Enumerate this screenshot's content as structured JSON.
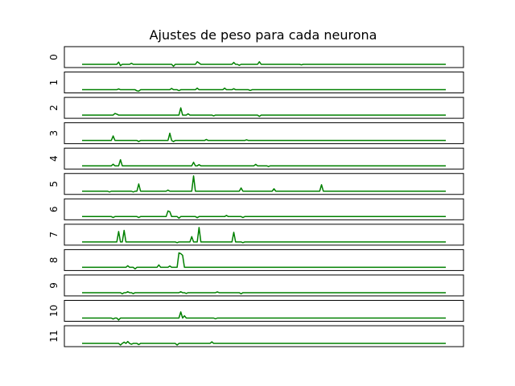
{
  "chart_data": {
    "type": "line",
    "title": "Ajustes de peso para cada neurona",
    "xlabel": "",
    "ylabel": "",
    "x_ticks_visible": false,
    "y_ticks_visible": false,
    "grid": false,
    "line_color": "#008000",
    "n_samples": 200,
    "x_range": [
      0,
      199
    ],
    "y_range": [
      -0.1,
      1.0
    ],
    "panels": [
      {
        "label": "0",
        "spikes": [
          [
            20,
            0.14
          ],
          [
            21,
            -0.08
          ],
          [
            27,
            0.07
          ],
          [
            50,
            -0.12
          ],
          [
            63,
            0.16
          ],
          [
            64,
            0.08
          ],
          [
            83,
            0.12
          ],
          [
            86,
            -0.06
          ],
          [
            97,
            0.16
          ],
          [
            120,
            -0.03
          ]
        ]
      },
      {
        "label": "1",
        "spikes": [
          [
            20,
            0.05
          ],
          [
            30,
            -0.07
          ],
          [
            31,
            -0.09
          ],
          [
            49,
            0.08
          ],
          [
            53,
            -0.06
          ],
          [
            63,
            0.1
          ],
          [
            78,
            0.1
          ],
          [
            83,
            0.06
          ],
          [
            92,
            -0.05
          ]
        ]
      },
      {
        "label": "2",
        "spikes": [
          [
            18,
            0.1
          ],
          [
            19,
            0.06
          ],
          [
            54,
            0.45
          ],
          [
            58,
            0.08
          ],
          [
            72,
            -0.05
          ],
          [
            97,
            -0.08
          ]
        ]
      },
      {
        "label": "3",
        "spikes": [
          [
            17,
            0.28
          ],
          [
            31,
            -0.07
          ],
          [
            48,
            0.45
          ],
          [
            50,
            -0.07
          ],
          [
            68,
            0.06
          ],
          [
            90,
            0.04
          ]
        ]
      },
      {
        "label": "4",
        "spikes": [
          [
            17,
            0.1
          ],
          [
            21,
            0.38
          ],
          [
            61,
            0.22
          ],
          [
            64,
            0.07
          ],
          [
            95,
            0.09
          ],
          [
            102,
            -0.04
          ]
        ]
      },
      {
        "label": "5",
        "spikes": [
          [
            15,
            -0.05
          ],
          [
            28,
            -0.05
          ],
          [
            31,
            0.45
          ],
          [
            47,
            0.07
          ],
          [
            61,
            0.95
          ],
          [
            87,
            0.2
          ],
          [
            105,
            0.15
          ],
          [
            131,
            0.4
          ]
        ]
      },
      {
        "label": "6",
        "spikes": [
          [
            17,
            -0.06
          ],
          [
            31,
            -0.06
          ],
          [
            47,
            0.35
          ],
          [
            48,
            0.3
          ],
          [
            53,
            -0.1
          ],
          [
            63,
            -0.07
          ],
          [
            79,
            0.07
          ],
          [
            88,
            -0.06
          ]
        ]
      },
      {
        "label": "7",
        "spikes": [
          [
            20,
            0.65
          ],
          [
            23,
            0.72
          ],
          [
            52,
            -0.05
          ],
          [
            60,
            0.33
          ],
          [
            64,
            0.9
          ],
          [
            83,
            0.6
          ],
          [
            88,
            -0.05
          ]
        ]
      },
      {
        "label": "8",
        "spikes": [
          [
            25,
            0.1
          ],
          [
            29,
            -0.1
          ],
          [
            42,
            0.15
          ],
          [
            48,
            0.08
          ],
          [
            53,
            0.9
          ],
          [
            54,
            0.85
          ],
          [
            55,
            0.75
          ]
        ]
      },
      {
        "label": "9",
        "spikes": [
          [
            22,
            -0.07
          ],
          [
            25,
            0.06
          ],
          [
            28,
            -0.06
          ],
          [
            54,
            0.06
          ],
          [
            57,
            -0.05
          ],
          [
            74,
            0.05
          ],
          [
            87,
            -0.07
          ]
        ]
      },
      {
        "label": "10",
        "spikes": [
          [
            17,
            -0.06
          ],
          [
            20,
            -0.12
          ],
          [
            54,
            0.38
          ],
          [
            56,
            0.14
          ],
          [
            73,
            -0.05
          ]
        ]
      },
      {
        "label": "11",
        "spikes": [
          [
            21,
            -0.1
          ],
          [
            23,
            0.08
          ],
          [
            25,
            0.12
          ],
          [
            27,
            -0.05
          ],
          [
            31,
            -0.07
          ],
          [
            52,
            -0.1
          ],
          [
            71,
            0.1
          ]
        ]
      }
    ]
  }
}
